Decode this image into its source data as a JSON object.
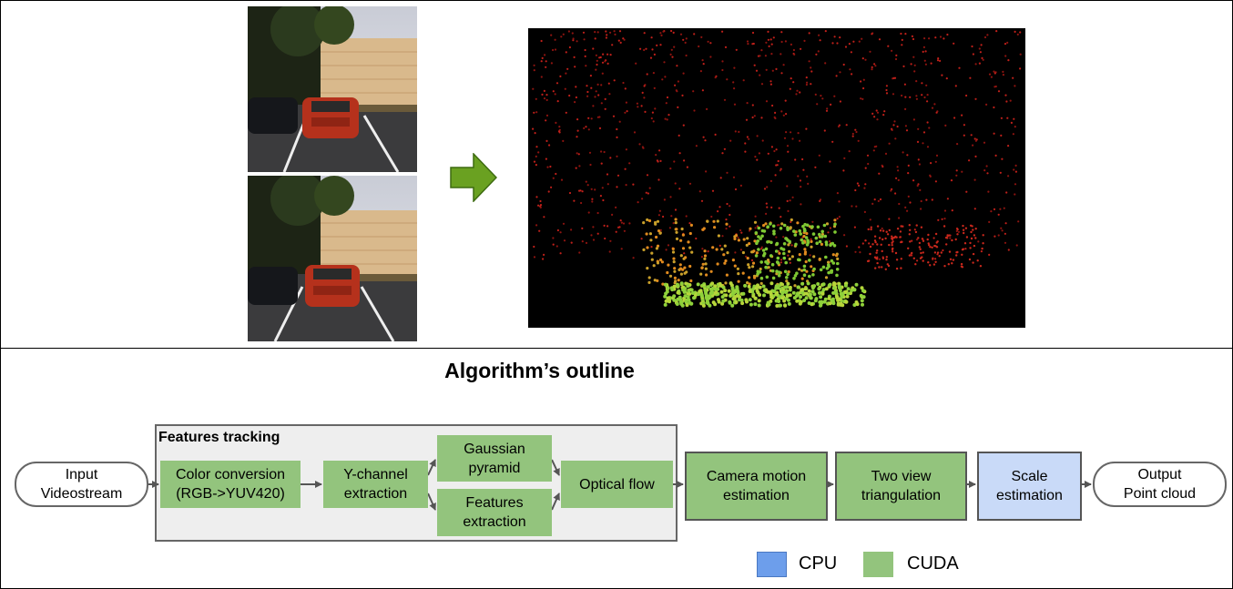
{
  "diagram": {
    "title": "Algorithm’s outline",
    "group_label": "Features tracking",
    "nodes": {
      "input": "Input\nVideostream",
      "color_conversion": "Color conversion\n(RGB->YUV420)",
      "y_channel": "Y-channel\nextraction",
      "gaussian_pyramid": "Gaussian\npyramid",
      "features_extraction": "Features\nextraction",
      "optical_flow": "Optical flow",
      "camera_motion": "Camera motion\nestimation",
      "triangulation": "Two view\ntriangulation",
      "scale": "Scale\nestimation",
      "output": "Output\nPoint cloud"
    },
    "legend": [
      {
        "label": "CPU",
        "color": "#6d9eeb"
      },
      {
        "label": "CUDA",
        "color": "#93c47d"
      }
    ]
  },
  "colors": {
    "cuda_fill": "#93c47d",
    "cpu_fill": "#c9daf8",
    "arrow_green": "#6aa121",
    "group_fill": "#eeeeee"
  }
}
